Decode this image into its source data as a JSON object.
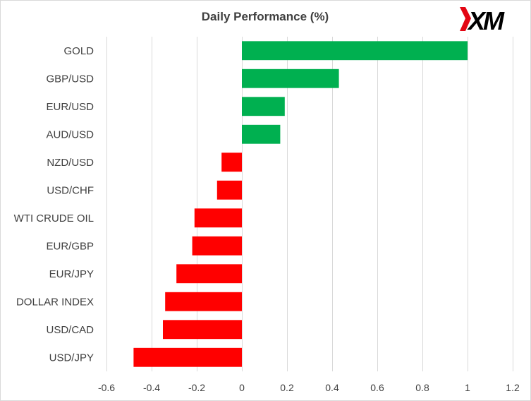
{
  "chart_data": {
    "type": "bar",
    "orientation": "horizontal",
    "title": "Daily Performance (%)",
    "categories": [
      "GOLD",
      "GBP/USD",
      "EUR/USD",
      "AUD/USD",
      "NZD/USD",
      "USD/CHF",
      "WTI CRUDE OIL",
      "EUR/GBP",
      "EUR/JPY",
      "DOLLAR INDEX",
      "USD/CAD",
      "USD/JPY"
    ],
    "values": [
      1.0,
      0.43,
      0.19,
      0.17,
      -0.09,
      -0.11,
      -0.21,
      -0.22,
      -0.29,
      -0.34,
      -0.35,
      -0.48
    ],
    "xlim": [
      -0.6,
      1.2
    ],
    "xticks": [
      -0.6,
      -0.4,
      -0.2,
      0,
      0.2,
      0.4,
      0.6,
      0.8,
      1,
      1.2
    ],
    "xtick_labels": [
      "-0.6",
      "-0.4",
      "-0.2",
      "0",
      "0.2",
      "0.4",
      "0.6",
      "0.8",
      "1",
      "1.2"
    ],
    "grid": true,
    "colors": {
      "positive": "#00b050",
      "negative": "#ff0000"
    }
  },
  "logo": {
    "text": "XM",
    "accent": "#e30613"
  }
}
